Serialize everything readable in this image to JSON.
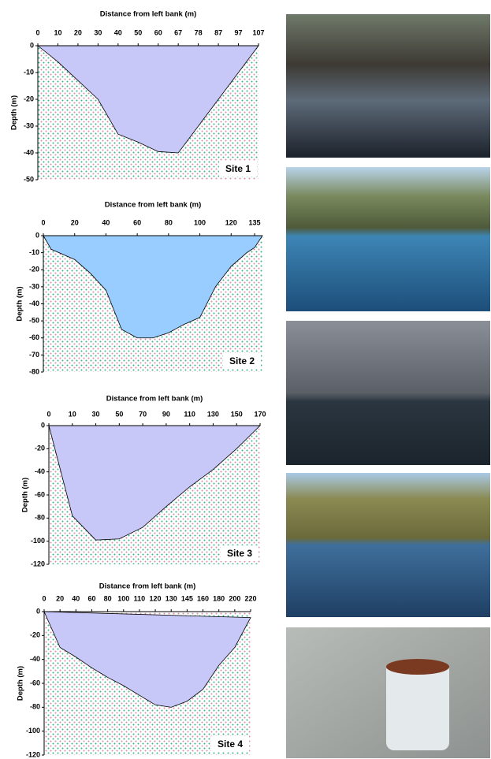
{
  "chart_data": [
    {
      "type": "area",
      "title": "Distance from left bank (m)",
      "y_label": "Depth (m)",
      "annotation": "Site 1",
      "color": "#c8c8f8",
      "categories": [
        "0",
        "10",
        "20",
        "30",
        "40",
        "50",
        "60",
        "67",
        "78",
        "87",
        "97",
        "107"
      ],
      "values": [
        0,
        -6,
        -13,
        -20,
        -33,
        -36,
        -39.5,
        -40,
        -30,
        -20,
        -10,
        0
      ],
      "ylim": [
        -50,
        0
      ],
      "yticks": [
        0,
        -10,
        -20,
        -30,
        -40,
        -50
      ]
    },
    {
      "type": "area",
      "title": "Distance from left bank (m)",
      "y_label": "Depth (m)",
      "annotation": "Site 2",
      "color": "#99ccff",
      "x": [
        0,
        5,
        20,
        30,
        40,
        50,
        60,
        70,
        80,
        90,
        100,
        110,
        120,
        130,
        135,
        140
      ],
      "values": [
        0,
        -8,
        -14,
        -22,
        -32,
        -55,
        -60,
        -60,
        -57,
        -52,
        -48,
        -30,
        -18,
        -10,
        -7,
        0
      ],
      "xlim": [
        0,
        140
      ],
      "xticks": [
        0,
        20,
        40,
        60,
        80,
        100,
        120,
        135
      ],
      "ylim": [
        -80,
        0
      ],
      "yticks": [
        0,
        -10,
        -20,
        -30,
        -40,
        -50,
        -60,
        -70,
        -80
      ]
    },
    {
      "type": "area",
      "title": "Distance from left bank (m)",
      "y_label": "Depth (m)",
      "annotation": "Site 3",
      "color": "#c8c8f8",
      "categories": [
        "0",
        "10",
        "30",
        "50",
        "70",
        "90",
        "110",
        "130",
        "150",
        "170"
      ],
      "values": [
        0,
        -78,
        -99,
        -98,
        -88,
        -70,
        -53,
        -38,
        -20,
        0
      ],
      "ylim": [
        -120,
        0
      ],
      "yticks": [
        0,
        -20,
        -40,
        -60,
        -80,
        -100,
        -120
      ]
    },
    {
      "type": "area",
      "title": "Distance from left bank (m)",
      "y_label": "Depth (m)",
      "annotation": "Site 4",
      "color": "#c8c8f8",
      "categories": [
        "0",
        "20",
        "40",
        "60",
        "80",
        "100",
        "110",
        "120",
        "130",
        "145",
        "160",
        "180",
        "200",
        "220"
      ],
      "values": [
        0,
        -30,
        -38,
        -47,
        -55,
        -62,
        -70,
        -78,
        -80,
        -75,
        -65,
        -45,
        -30,
        -5
      ],
      "ylim": [
        -120,
        0
      ],
      "yticks": [
        0,
        -20,
        -40,
        -60,
        -80,
        -100,
        -120
      ]
    }
  ]
}
